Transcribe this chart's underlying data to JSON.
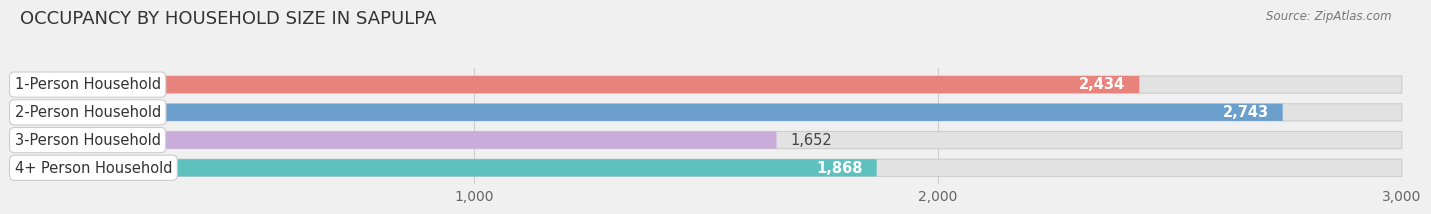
{
  "title": "OCCUPANCY BY HOUSEHOLD SIZE IN SAPULPA",
  "source": "Source: ZipAtlas.com",
  "categories": [
    "1-Person Household",
    "2-Person Household",
    "3-Person Household",
    "4+ Person Household"
  ],
  "values": [
    2434,
    2743,
    1652,
    1868
  ],
  "bar_colors": [
    "#E8827C",
    "#6B9FCC",
    "#C9ACDA",
    "#5EC0BF"
  ],
  "background_color": "#F0F0F0",
  "bar_bg_color": "#E2E2E2",
  "xlim": [
    0,
    3000
  ],
  "xticks": [
    1000,
    2000,
    3000
  ],
  "bar_height": 0.62,
  "title_fontsize": 13,
  "label_fontsize": 10.5,
  "value_fontsize": 10.5,
  "tick_fontsize": 10,
  "value_threshold": 1800
}
